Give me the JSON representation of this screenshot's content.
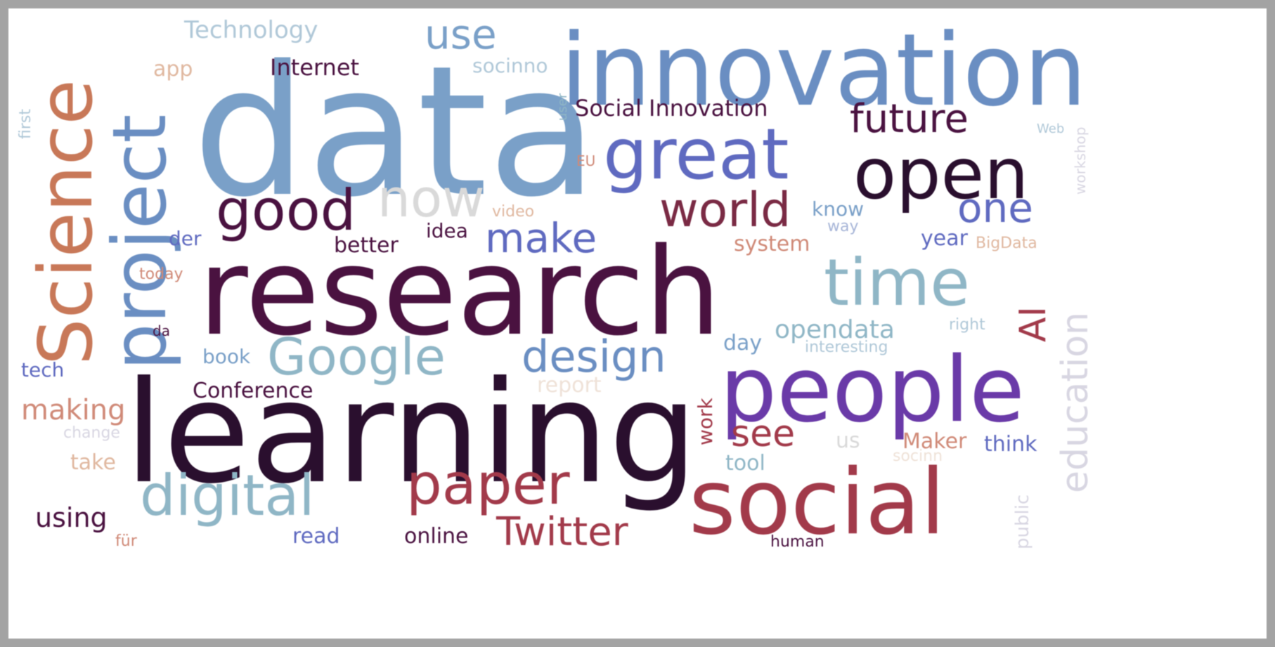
{
  "background": "#ffffff",
  "border_color": "#a3a3a3",
  "palette": {
    "plum": "#4a1240",
    "darkplum": "#2a0f2e",
    "steelblue": "#7aa0c8",
    "blue": "#6a8ec2",
    "indigo": "#5f6ac0",
    "violet": "#6a3aa8",
    "teal": "#8fb6c6",
    "rust": "#c87858",
    "crimson": "#a23a4a",
    "maroon": "#7a2a44",
    "lavender": "#d8d6e2",
    "lightgray": "#d9d9d9",
    "peach": "#e0b8a0",
    "salmon": "#d08a78"
  },
  "words": [
    {
      "text": "data",
      "color": "#7aa0c8"
    },
    {
      "text": "innovation",
      "color": "#6a8ec2"
    },
    {
      "text": "research",
      "color": "#4a1240"
    },
    {
      "text": "learning",
      "color": "#2a0f2e"
    },
    {
      "text": "social",
      "color": "#a23a4a"
    },
    {
      "text": "people",
      "color": "#6a3aa8"
    },
    {
      "text": "Science",
      "color": "#c87858"
    },
    {
      "text": "project",
      "color": "#6a8ec2"
    },
    {
      "text": "great",
      "color": "#5f6ac0"
    },
    {
      "text": "open",
      "color": "#2a0f2e"
    },
    {
      "text": "time",
      "color": "#8fb6c6"
    },
    {
      "text": "Google",
      "color": "#8fb6c6"
    },
    {
      "text": "digital",
      "color": "#8fb6c6"
    },
    {
      "text": "paper",
      "color": "#a23a4a"
    },
    {
      "text": "Twitter",
      "color": "#a23a4a"
    },
    {
      "text": "design",
      "color": "#6a8ec2"
    },
    {
      "text": "good",
      "color": "#4a1240"
    },
    {
      "text": "now",
      "color": "#d9d9d9"
    },
    {
      "text": "world",
      "color": "#7a2a44"
    },
    {
      "text": "future",
      "color": "#4a1240"
    },
    {
      "text": "make",
      "color": "#5f6ac0"
    },
    {
      "text": "one",
      "color": "#5f6ac0"
    },
    {
      "text": "use",
      "color": "#7aa0c8"
    },
    {
      "text": "education",
      "color": "#d8d6e2"
    },
    {
      "text": "AI",
      "color": "#a23a4a"
    },
    {
      "text": "see",
      "color": "#a23a4a"
    },
    {
      "text": "opendata",
      "color": "#8fb6c6"
    },
    {
      "text": "Technology",
      "color": "#b0c8d8"
    },
    {
      "text": "Social Innovation",
      "color": "#4a1240"
    },
    {
      "text": "Internet",
      "color": "#4a1240"
    },
    {
      "text": "socinno",
      "color": "#b0c8d8"
    },
    {
      "text": "app",
      "color": "#e0b8a0"
    },
    {
      "text": "Conference",
      "color": "#4a1240"
    },
    {
      "text": "making",
      "color": "#d08a78"
    },
    {
      "text": "using",
      "color": "#4a1240"
    },
    {
      "text": "better",
      "color": "#4a1240"
    },
    {
      "text": "idea",
      "color": "#4a1240"
    },
    {
      "text": "der",
      "color": "#5f6ac0"
    },
    {
      "text": "video",
      "color": "#e0b8a0"
    },
    {
      "text": "today",
      "color": "#d08a78"
    },
    {
      "text": "system",
      "color": "#d08a78"
    },
    {
      "text": "know",
      "color": "#7aa0c8"
    },
    {
      "text": "way",
      "color": "#a8b6d8"
    },
    {
      "text": "year",
      "color": "#5f6ac0"
    },
    {
      "text": "BigData",
      "color": "#e0b8a0"
    },
    {
      "text": "right",
      "color": "#b0c8d8"
    },
    {
      "text": "interesting",
      "color": "#b0c8d8"
    },
    {
      "text": "day",
      "color": "#7aa0c8"
    },
    {
      "text": "book",
      "color": "#7aa0c8"
    },
    {
      "text": "tech",
      "color": "#5f6ac0"
    },
    {
      "text": "da",
      "color": "#4a1240"
    },
    {
      "text": "report",
      "color": "#efe2d8"
    },
    {
      "text": "work",
      "color": "#a23a4a"
    },
    {
      "text": "us",
      "color": "#d9d9d9"
    },
    {
      "text": "Maker",
      "color": "#d08a78"
    },
    {
      "text": "think",
      "color": "#5f6ac0"
    },
    {
      "text": "tool",
      "color": "#8fb6c6"
    },
    {
      "text": "socinn",
      "color": "#efe2d8"
    },
    {
      "text": "change",
      "color": "#d8d6e2"
    },
    {
      "text": "take",
      "color": "#e0b8a0"
    },
    {
      "text": "read",
      "color": "#5f6ac0"
    },
    {
      "text": "online",
      "color": "#4a1240"
    },
    {
      "text": "für",
      "color": "#d08a78"
    },
    {
      "text": "human",
      "color": "#4a1240"
    },
    {
      "text": "public",
      "color": "#d8d6e2"
    },
    {
      "text": "EU",
      "color": "#d08a78"
    },
    {
      "text": "Web",
      "color": "#b0c8d8"
    },
    {
      "text": "workshop",
      "color": "#d8d6e2"
    },
    {
      "text": "user",
      "color": "#8fb6c6"
    },
    {
      "text": "first",
      "color": "#b0c8d8"
    }
  ]
}
